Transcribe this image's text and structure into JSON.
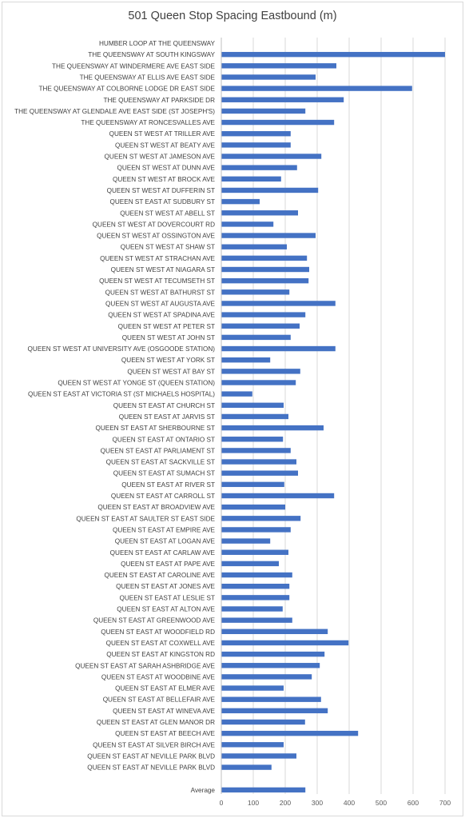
{
  "chart_data": {
    "type": "bar",
    "orientation": "horizontal",
    "title": "501 Queen Stop Spacing Eastbound (m)",
    "xlim": [
      0,
      700
    ],
    "xticks": [
      0,
      100,
      200,
      300,
      400,
      500,
      600,
      700
    ],
    "grid": true,
    "legend": "none",
    "bar_color": "#4472c4",
    "categories": [
      "HUMBER LOOP AT THE QUEENSWAY",
      "THE QUEENSWAY AT SOUTH KINGSWAY",
      "THE QUEENSWAY AT WINDERMERE AVE EAST SIDE",
      "THE QUEENSWAY AT ELLIS AVE EAST SIDE",
      "THE QUEENSWAY AT COLBORNE LODGE DR EAST SIDE",
      "THE QUEENSWAY AT PARKSIDE DR",
      "THE QUEENSWAY AT GLENDALE AVE EAST SIDE (ST JOSEPH'S)",
      "THE QUEENSWAY AT RONCESVALLES AVE",
      "QUEEN ST WEST AT TRILLER AVE",
      "QUEEN ST WEST AT BEATY AVE",
      "QUEEN ST WEST AT JAMESON AVE",
      "QUEEN ST WEST AT DUNN AVE",
      "QUEEN ST WEST AT BROCK AVE",
      "QUEEN ST WEST AT DUFFERIN ST",
      "QUEEN ST EAST AT SUDBURY ST",
      "QUEEN ST WEST AT ABELL ST",
      "QUEEN ST WEST AT DOVERCOURT RD",
      "QUEEN ST WEST AT OSSINGTON AVE",
      "QUEEN ST WEST AT SHAW ST",
      "QUEEN ST WEST AT STRACHAN AVE",
      "QUEEN ST WEST AT NIAGARA ST",
      "QUEEN ST WEST AT TECUMSETH ST",
      "QUEEN ST WEST AT BATHURST ST",
      "QUEEN ST WEST AT AUGUSTA AVE",
      "QUEEN ST WEST AT SPADINA AVE",
      "QUEEN ST WEST AT PETER ST",
      "QUEEN ST WEST AT JOHN ST",
      "QUEEN ST WEST AT UNIVERSITY AVE (OSGOODE STATION)",
      "QUEEN ST WEST AT YORK ST",
      "QUEEN ST WEST AT BAY ST",
      "QUEEN ST WEST AT YONGE ST (QUEEN STATION)",
      "QUEEN ST EAST AT VICTORIA ST (ST MICHAELS HOSPITAL)",
      "QUEEN ST EAST AT CHURCH ST",
      "QUEEN ST EAST AT JARVIS ST",
      "QUEEN ST EAST AT SHERBOURNE ST",
      "QUEEN ST EAST AT ONTARIO ST",
      "QUEEN ST EAST AT PARLIAMENT ST",
      "QUEEN ST EAST AT SACKVILLE ST",
      "QUEEN ST EAST AT SUMACH ST",
      "QUEEN ST EAST AT RIVER ST",
      "QUEEN ST EAST AT CARROLL ST",
      "QUEEN ST EAST AT BROADVIEW AVE",
      "QUEEN ST EAST AT SAULTER ST EAST SIDE",
      "QUEEN ST EAST AT EMPIRE AVE",
      "QUEEN ST EAST AT LOGAN AVE",
      "QUEEN ST EAST AT CARLAW AVE",
      "QUEEN ST EAST AT PAPE AVE",
      "QUEEN ST EAST AT CAROLINE AVE",
      "QUEEN ST EAST AT JONES AVE",
      "QUEEN ST EAST AT LESLIE ST",
      "QUEEN ST EAST AT ALTON AVE",
      "QUEEN ST EAST AT GREENWOOD AVE",
      "QUEEN ST EAST AT WOODFIELD RD",
      "QUEEN ST EAST AT COXWELL AVE",
      "QUEEN ST EAST AT KINGSTON RD",
      "QUEEN ST EAST AT SARAH ASHBRIDGE AVE",
      "QUEEN ST EAST AT WOODBINE AVE",
      "QUEEN ST EAST AT ELMER AVE",
      "QUEEN ST EAST AT BELLEFAIR AVE",
      "QUEEN ST EAST AT WINEVA AVE",
      "QUEEN ST EAST AT GLEN MANOR DR",
      "QUEEN ST EAST AT BEECH AVE",
      "QUEEN ST EAST AT SILVER BIRCH AVE",
      "QUEEN ST EAST AT NEVILLE PARK BLVD",
      "QUEEN ST EAST AT NEVILLE PARK BLVD",
      "",
      "Average"
    ],
    "values": [
      0,
      700,
      360,
      295,
      597,
      383,
      263,
      353,
      217,
      217,
      313,
      237,
      187,
      303,
      120,
      240,
      163,
      295,
      205,
      268,
      275,
      273,
      213,
      357,
      263,
      245,
      217,
      357,
      153,
      247,
      233,
      97,
      195,
      210,
      320,
      193,
      217,
      235,
      240,
      197,
      353,
      200,
      248,
      217,
      153,
      210,
      180,
      222,
      213,
      213,
      192,
      222,
      333,
      398,
      323,
      308,
      283,
      195,
      312,
      333,
      262,
      428,
      195,
      235,
      157,
      null,
      263
    ]
  }
}
